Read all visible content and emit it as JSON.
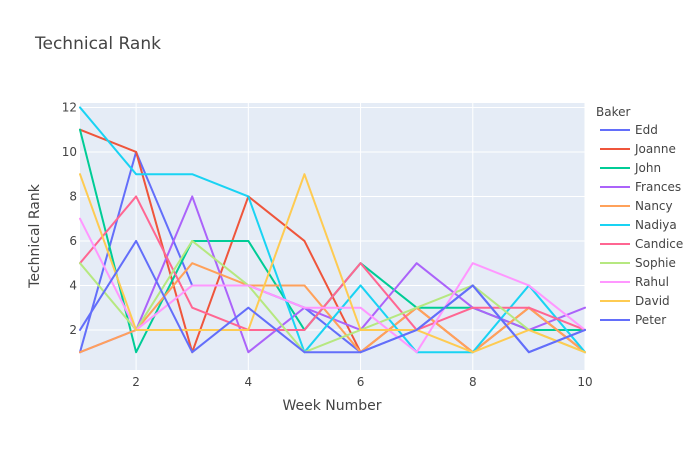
{
  "chart_data": {
    "type": "line",
    "title": "Technical Rank",
    "xlabel": "Week Number",
    "ylabel": "Technical Rank",
    "legend_title": "Baker",
    "legend_position": "right",
    "grid": true,
    "xlim": [
      1,
      10
    ],
    "ylim": [
      0.2,
      12.2
    ],
    "xticks": [
      2,
      4,
      6,
      8,
      10
    ],
    "yticks": [
      2,
      4,
      6,
      8,
      10,
      12
    ],
    "x": [
      1,
      2,
      3,
      4,
      5,
      6,
      7,
      8,
      9,
      10
    ],
    "series": [
      {
        "name": "Edd",
        "color": "#636efa",
        "values": [
          1,
          10,
          4,
          4,
          3,
          1,
          2,
          4,
          1,
          2
        ]
      },
      {
        "name": "Joanne",
        "color": "#EF553B",
        "values": [
          11,
          10,
          1,
          8,
          6,
          1,
          3,
          1,
          3,
          1
        ]
      },
      {
        "name": "John",
        "color": "#00cc96",
        "values": [
          11,
          1,
          6,
          6,
          2,
          5,
          3,
          3,
          2,
          2
        ]
      },
      {
        "name": "Frances",
        "color": "#ab63fa",
        "values": [
          1,
          2,
          8,
          1,
          3,
          2,
          5,
          3,
          2,
          3
        ]
      },
      {
        "name": "Nancy",
        "color": "#FFA15A",
        "values": [
          1,
          2,
          5,
          4,
          4,
          1,
          3,
          1,
          3,
          1
        ]
      },
      {
        "name": "Nadiya",
        "color": "#19d3f3",
        "values": [
          12,
          9,
          9,
          8,
          1,
          4,
          1,
          1,
          4,
          1
        ]
      },
      {
        "name": "Candice",
        "color": "#FF6692",
        "values": [
          5,
          8,
          3,
          2,
          2,
          5,
          2,
          3,
          3,
          2
        ]
      },
      {
        "name": "Sophie",
        "color": "#B6E880",
        "values": [
          5,
          2,
          6,
          4,
          1,
          2,
          3,
          4,
          2,
          1
        ]
      },
      {
        "name": "Rahul",
        "color": "#FF97FF",
        "values": [
          7,
          2,
          4,
          4,
          3,
          3,
          1,
          5,
          4,
          2
        ]
      },
      {
        "name": "David",
        "color": "#FECB52",
        "values": [
          9,
          2,
          2,
          2,
          9,
          2,
          2,
          1,
          2,
          1
        ]
      },
      {
        "name": "Peter",
        "color": "#636efa",
        "values": [
          2,
          6,
          1,
          3,
          1,
          1,
          2,
          4,
          1,
          2
        ]
      }
    ]
  }
}
